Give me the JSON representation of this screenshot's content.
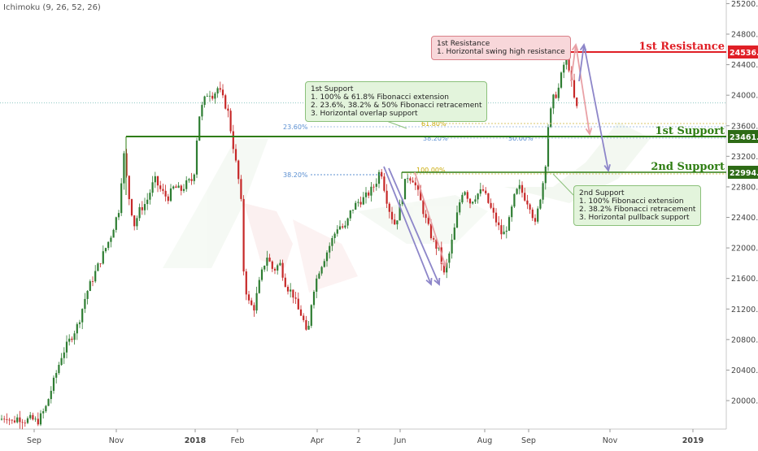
{
  "indicator": "Ichimoku (9, 26, 52, 26)",
  "colors": {
    "resistance": "#e01f26",
    "support": "#2e7d12",
    "candle_up": "#2e7d32",
    "candle_down": "#c62828",
    "fib": "#5b8fd1",
    "fib_ext": "#c8a700",
    "arrow_red": "#e9a1a6",
    "arrow_blue": "#8d86c9"
  },
  "levels": {
    "resistance1": {
      "label": "1st Resistance",
      "value": 24536.2,
      "tag": "24536.2"
    },
    "support1": {
      "label": "1st Support",
      "value": 23461.0,
      "tag": "23461.0"
    },
    "support2": {
      "label": "2nd Support",
      "value": 22994.1,
      "tag": "22994.1"
    },
    "current": 23900
  },
  "fib_labels": {
    "f1": "23.60%",
    "f2": "38.20%",
    "f3": "61.80%",
    "f4": "38.20%",
    "f5": "50.00%",
    "f6": "100.00%"
  },
  "callouts": {
    "resistance": {
      "lines": [
        "1st Resistance",
        "1. Horizontal swing high resistance"
      ]
    },
    "support1": {
      "lines": [
        "1st Support",
        "1. 100% & 61.8% Fibonacci extension",
        "2. 23.6%, 38.2% & 50% Fibonacci retracement",
        "3. Horizontal overlap support"
      ]
    },
    "support2": {
      "lines": [
        "2nd Support",
        "1. 100% Fibonacci extension",
        "2. 38.2% Fibonacci retracement",
        "3. Horizontal pullback support"
      ]
    }
  },
  "chart_data": {
    "type": "candlestick",
    "y_ticks": [
      "25200.0",
      "24800.0",
      "24400.0",
      "24000.0",
      "23600.0",
      "23200.0",
      "22800.0",
      "22400.0",
      "22000.0",
      "21600.0",
      "21200.0",
      "20800.0",
      "20400.0",
      "20000.0"
    ],
    "y_range": [
      19650,
      25250
    ],
    "x_ticks": [
      "Sep",
      "Nov",
      "2018",
      "Feb",
      "Apr",
      "2",
      "Jun",
      "Aug",
      "Sep",
      "Nov",
      "2019"
    ],
    "x_tick_bold": [
      "2018",
      "2019"
    ],
    "price_path": [
      [
        0,
        19750
      ],
      [
        8,
        19800
      ],
      [
        15,
        19720
      ],
      [
        22,
        19780
      ],
      [
        30,
        19740
      ],
      [
        38,
        19760
      ],
      [
        46,
        19720
      ],
      [
        56,
        19900
      ],
      [
        66,
        20250
      ],
      [
        76,
        20600
      ],
      [
        86,
        20800
      ],
      [
        96,
        21000
      ],
      [
        106,
        21400
      ],
      [
        116,
        21650
      ],
      [
        126,
        21900
      ],
      [
        136,
        22150
      ],
      [
        146,
        22500
      ],
      [
        152,
        23250
      ],
      [
        158,
        22700
      ],
      [
        165,
        22300
      ],
      [
        172,
        22500
      ],
      [
        180,
        22600
      ],
      [
        190,
        22900
      ],
      [
        198,
        22750
      ],
      [
        206,
        22650
      ],
      [
        214,
        22800
      ],
      [
        222,
        22750
      ],
      [
        230,
        22850
      ],
      [
        238,
        22900
      ],
      [
        244,
        23700
      ],
      [
        250,
        23900
      ],
      [
        256,
        24050
      ],
      [
        262,
        24000
      ],
      [
        268,
        24100
      ],
      [
        274,
        23950
      ],
      [
        280,
        23800
      ],
      [
        288,
        23250
      ],
      [
        296,
        22700
      ],
      [
        300,
        21600
      ],
      [
        305,
        21300
      ],
      [
        312,
        21200
      ],
      [
        320,
        21600
      ],
      [
        328,
        21900
      ],
      [
        336,
        21700
      ],
      [
        344,
        21800
      ],
      [
        352,
        21500
      ],
      [
        360,
        21400
      ],
      [
        366,
        21200
      ],
      [
        372,
        21100
      ],
      [
        378,
        20800
      ],
      [
        384,
        21400
      ],
      [
        392,
        21700
      ],
      [
        400,
        21900
      ],
      [
        408,
        22100
      ],
      [
        416,
        22300
      ],
      [
        424,
        22250
      ],
      [
        432,
        22500
      ],
      [
        440,
        22600
      ],
      [
        448,
        22650
      ],
      [
        456,
        22750
      ],
      [
        462,
        22850
      ],
      [
        468,
        23050
      ],
      [
        474,
        22700
      ],
      [
        480,
        22450
      ],
      [
        486,
        22300
      ],
      [
        492,
        22550
      ],
      [
        500,
        22950
      ],
      [
        508,
        22900
      ],
      [
        516,
        22650
      ],
      [
        524,
        22350
      ],
      [
        532,
        22100
      ],
      [
        540,
        21950
      ],
      [
        546,
        21650
      ],
      [
        552,
        21900
      ],
      [
        558,
        22200
      ],
      [
        564,
        22550
      ],
      [
        570,
        22800
      ],
      [
        578,
        22600
      ],
      [
        586,
        22700
      ],
      [
        594,
        22750
      ],
      [
        602,
        22550
      ],
      [
        610,
        22350
      ],
      [
        618,
        22150
      ],
      [
        626,
        22350
      ],
      [
        632,
        22650
      ],
      [
        638,
        22800
      ],
      [
        646,
        22650
      ],
      [
        652,
        22550
      ],
      [
        658,
        22300
      ],
      [
        664,
        22650
      ],
      [
        670,
        23000
      ],
      [
        674,
        23600
      ],
      [
        680,
        23950
      ],
      [
        686,
        24050
      ],
      [
        692,
        24350
      ],
      [
        697,
        24550
      ],
      [
        702,
        24200
      ],
      [
        706,
        23950
      ],
      [
        710,
        23800
      ]
    ],
    "series": [
      {
        "name": "",
        "kind": "candles"
      }
    ]
  }
}
